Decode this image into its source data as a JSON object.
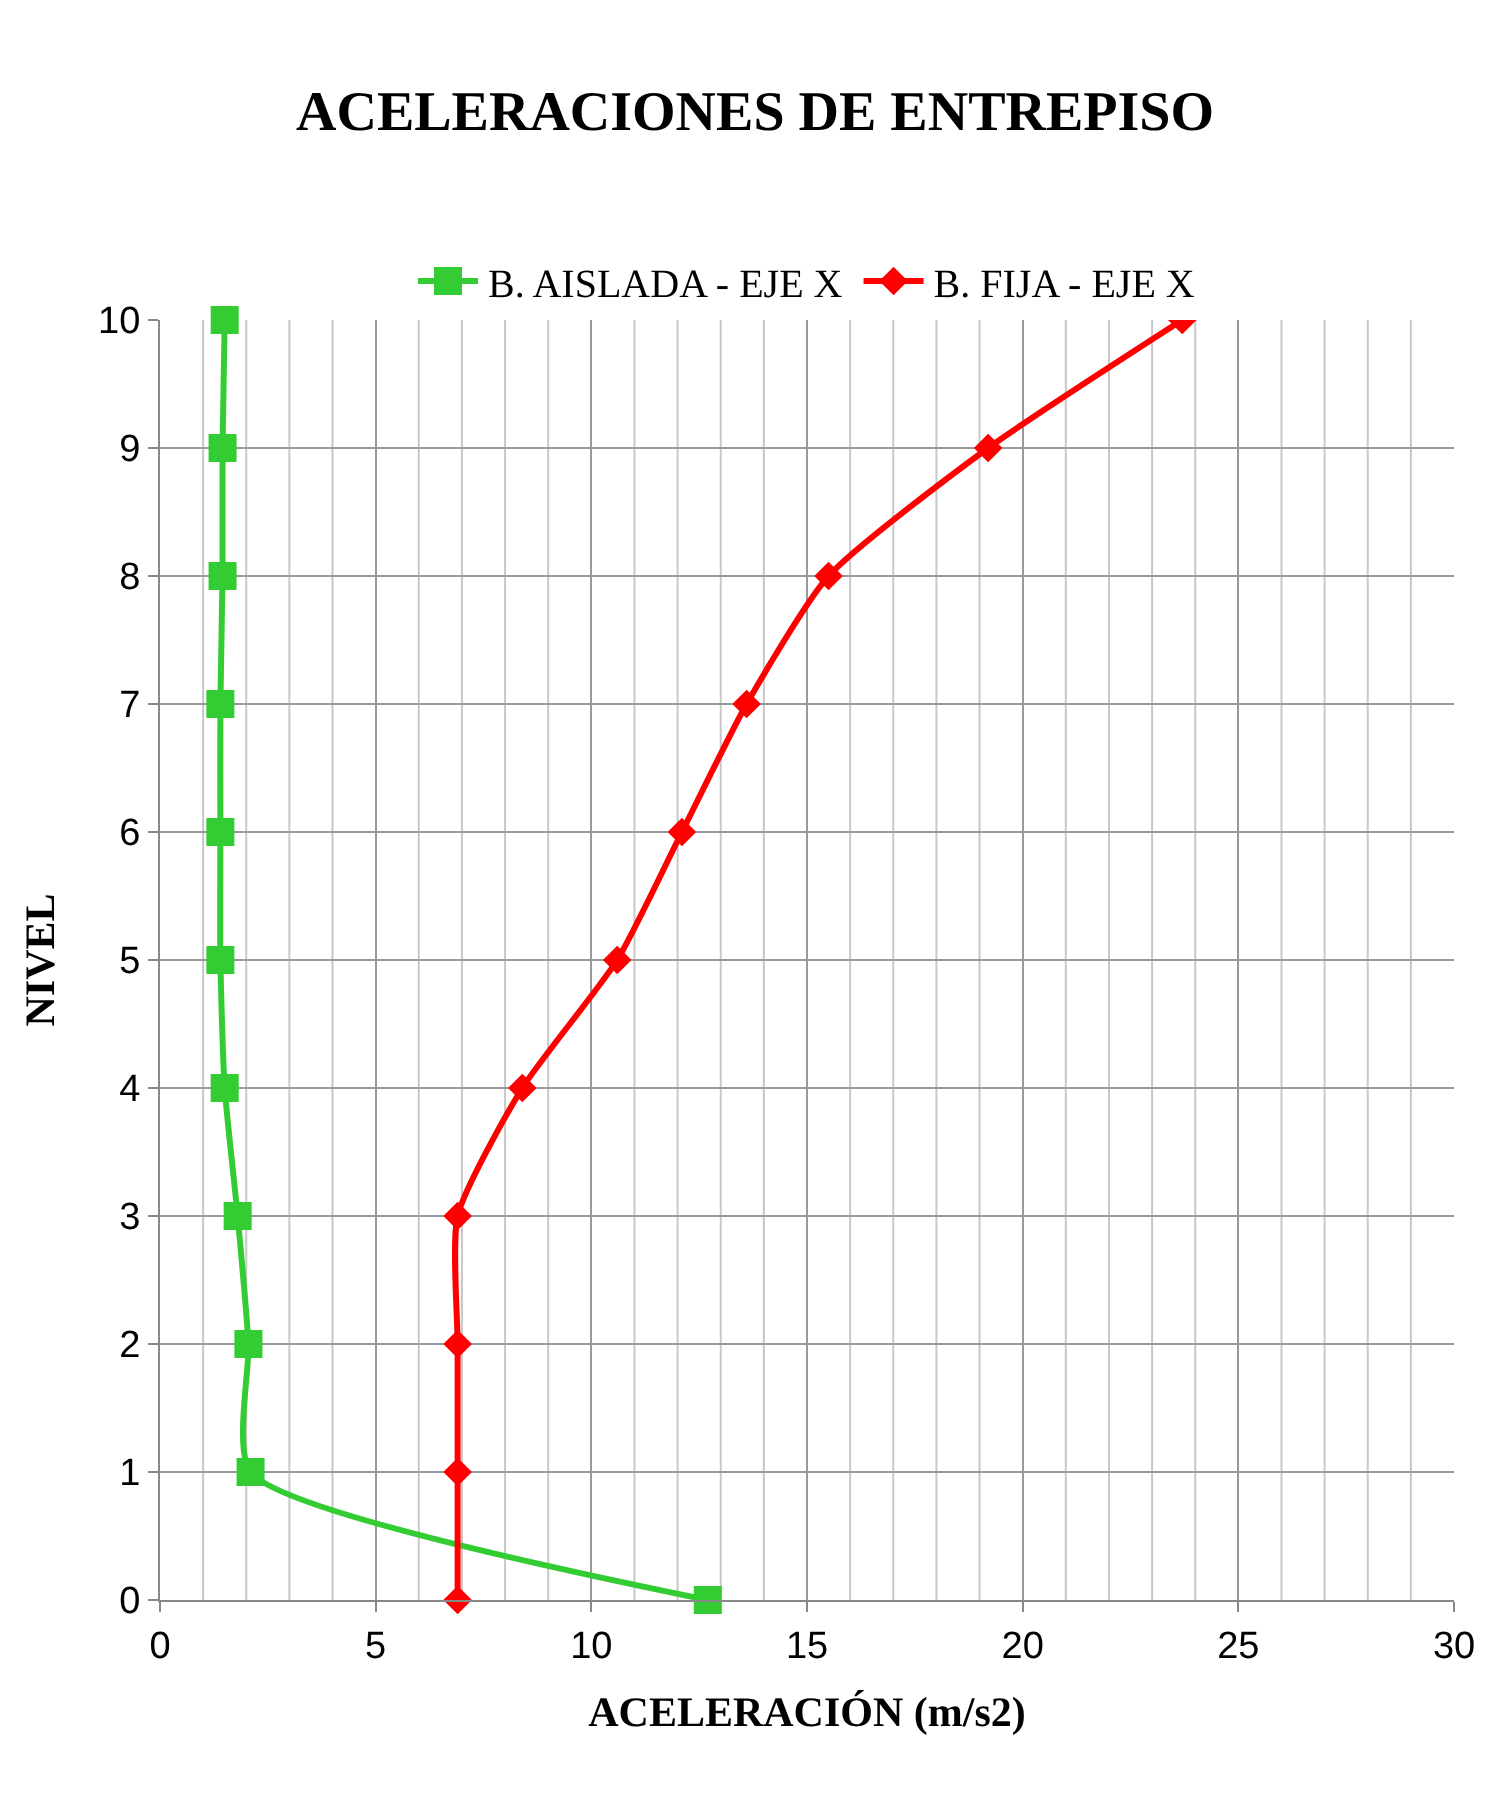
{
  "chart_data": {
    "type": "line",
    "title": "ACELERACIONES DE ENTREPISO",
    "xlabel": "ACELERACIÓN (m/s2)",
    "ylabel": "NIVEL",
    "series": [
      {
        "name": "B. AISLADA - EJE X",
        "color": "#33cc33",
        "marker": "square",
        "x": [
          12.7,
          2.1,
          2.05,
          1.8,
          1.5,
          1.4,
          1.4,
          1.4,
          1.45,
          1.45,
          1.5
        ],
        "values": [
          0,
          1,
          2,
          3,
          4,
          5,
          6,
          7,
          8,
          9,
          10
        ]
      },
      {
        "name": "B. FIJA - EJE X",
        "color": "#ff0000",
        "marker": "diamond",
        "x": [
          6.9,
          6.9,
          6.9,
          6.9,
          8.4,
          10.6,
          12.1,
          13.6,
          15.5,
          19.2,
          23.7
        ],
        "values": [
          0,
          1,
          2,
          3,
          4,
          5,
          6,
          7,
          8,
          9,
          10
        ]
      }
    ],
    "xlim": [
      0,
      30
    ],
    "xticks": [
      0,
      5,
      10,
      15,
      20,
      25,
      30
    ],
    "ylim": [
      0,
      10
    ],
    "yticks": [
      0,
      1,
      2,
      3,
      4,
      5,
      6,
      7,
      8,
      9,
      10
    ],
    "grid": true,
    "legend": "top",
    "line_style": "solid"
  }
}
